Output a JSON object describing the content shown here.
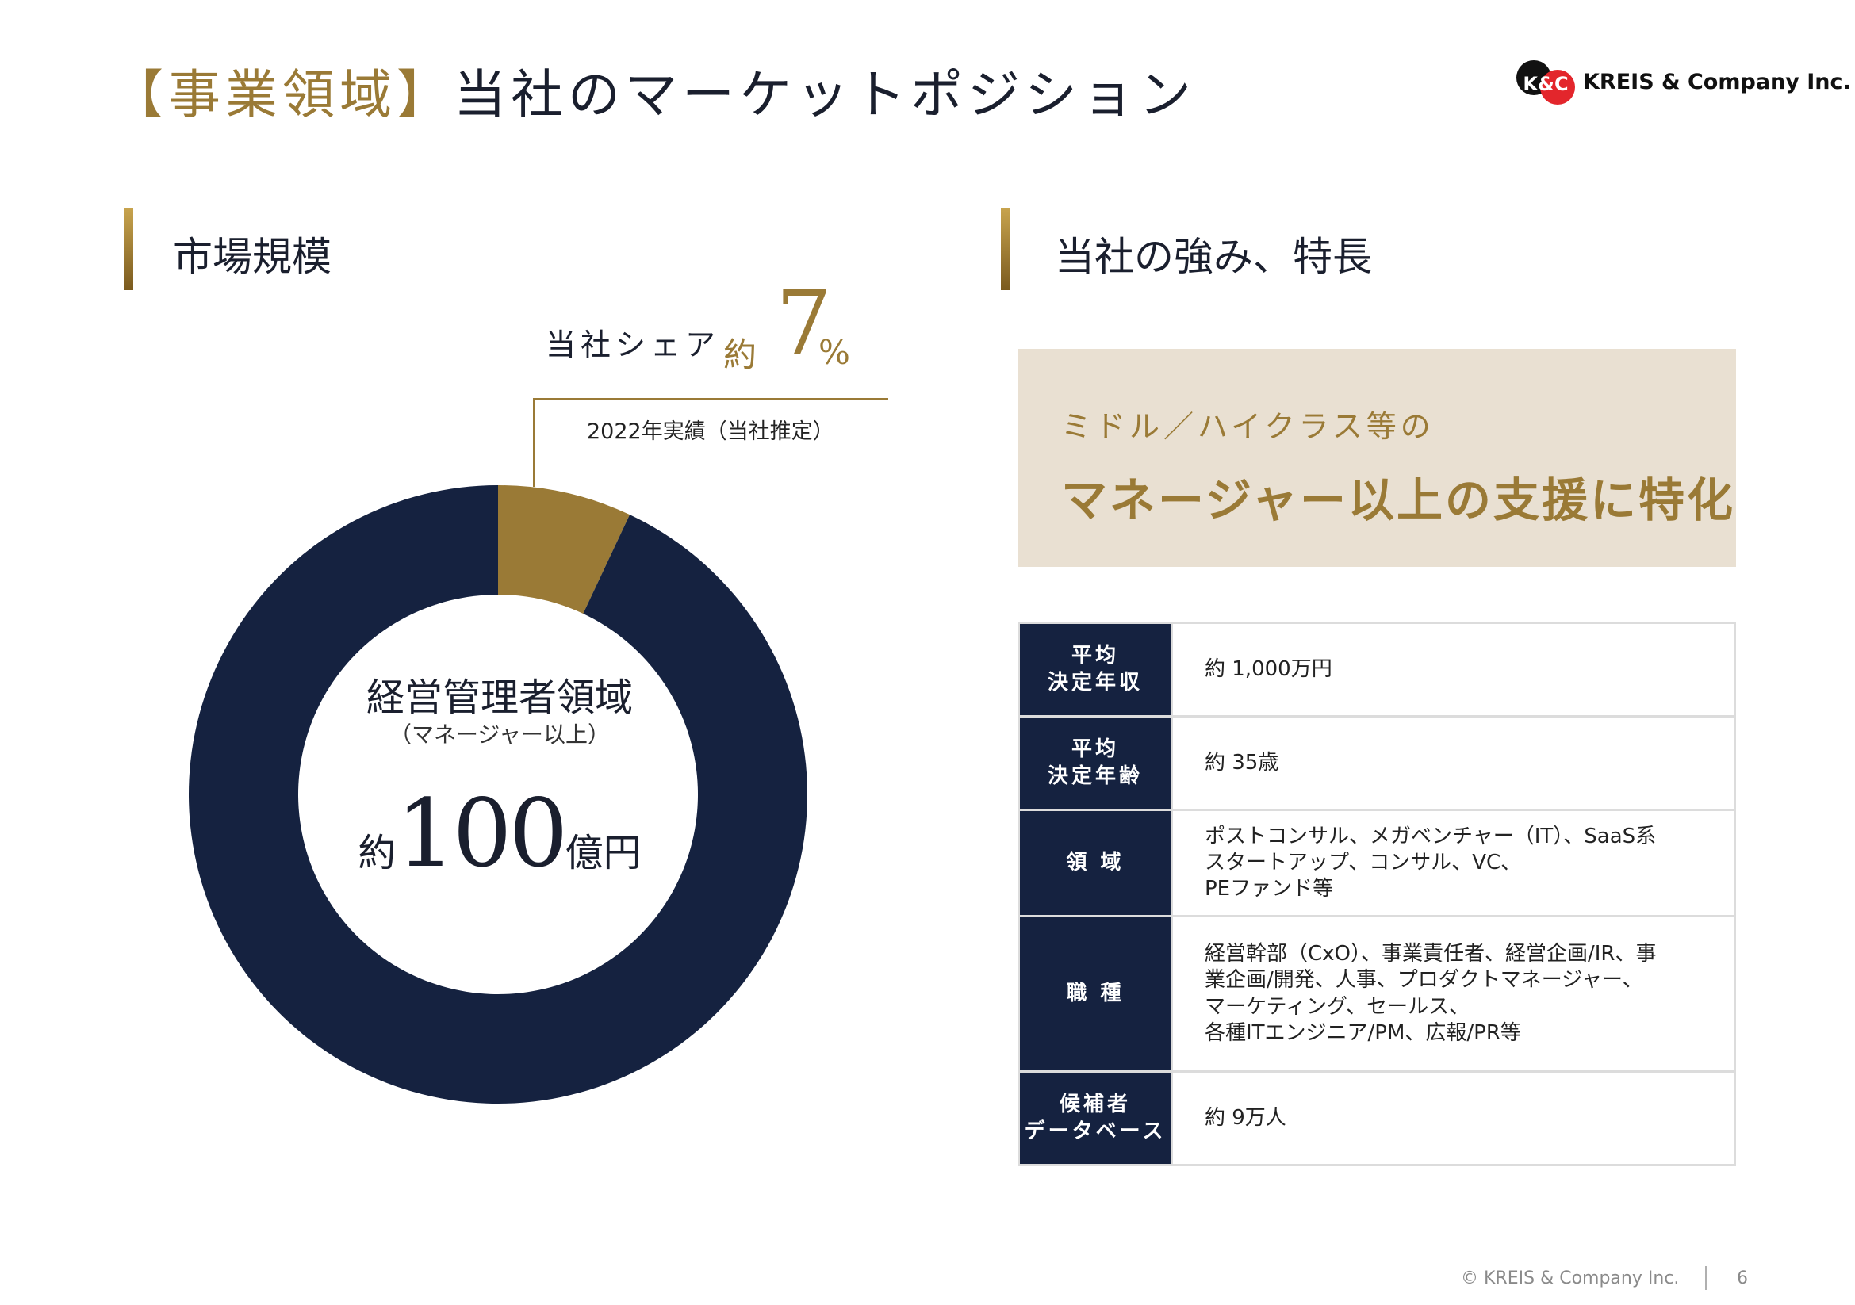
{
  "header": {
    "bracket": "【事業領域】",
    "title": "当社のマーケットポジション"
  },
  "logo": {
    "mark_text": "K&C",
    "text": "KREIS & Company Inc.",
    "colors": {
      "black": "#111111",
      "red": "#e3262c"
    }
  },
  "left_section": {
    "title": "市場規模",
    "share": {
      "label": "当社シェア",
      "prefix": "約",
      "value": "7",
      "unit": "%",
      "note": "2022年実績（当社推定）"
    },
    "center": {
      "label": "経営管理者領域",
      "sub": "（マネージャー以上）",
      "prefix": "約",
      "value": "100",
      "unit": "億円"
    }
  },
  "chart_data": {
    "type": "pie",
    "donut": true,
    "slices": [
      {
        "value": 7,
        "color": "#9a7a36"
      },
      {
        "value": 93,
        "color": "#152240"
      }
    ]
  },
  "right_section": {
    "title": "当社の強み、特長",
    "highlight": {
      "sub": "ミドル／ハイクラス等の",
      "main": "マネージャー以上の支援に特化"
    },
    "table": [
      {
        "head": [
          "平均",
          "決定年収"
        ],
        "value": [
          "約 1,000万円"
        ]
      },
      {
        "head": [
          "平均",
          "決定年齢"
        ],
        "value": [
          "約 35歳"
        ]
      },
      {
        "head": [
          "領 域"
        ],
        "value": [
          "ポストコンサル、メガベンチャー（IT）、SaaS系",
          "スタートアップ、コンサル、VC、",
          "PEファンド等"
        ]
      },
      {
        "head": [
          "職 種"
        ],
        "value": [
          "経営幹部（CxO）、事業責任者、経営企画/IR、事",
          "業企画/開発、人事、プロダクトマネージャー、",
          "マーケティング、セールス、",
          "各種ITエンジニア/PM、広報/PR等"
        ]
      },
      {
        "head": [
          "候補者",
          "データベース"
        ],
        "value": [
          "約 9万人"
        ]
      }
    ]
  },
  "footer": {
    "copyright": "© KREIS & Company Inc.",
    "page": "6"
  },
  "colors": {
    "gold": "#9a7a36",
    "navy": "#152240",
    "beige": "#e9e0d2"
  }
}
